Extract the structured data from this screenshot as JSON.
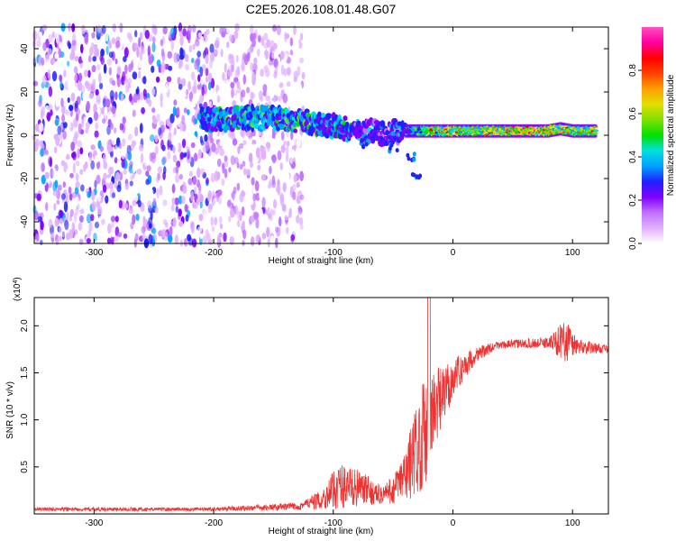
{
  "chart_data": [
    {
      "type": "heatmap",
      "title": "C2E5.2026.108.01.48.G07",
      "xlabel": "Height of straight line (km)",
      "ylabel": "Frequency (Hz)",
      "xlim": [
        -350,
        130
      ],
      "ylim": [
        -50,
        50
      ],
      "xticks": [
        -300,
        -200,
        -100,
        0,
        100
      ],
      "yticks": [
        -40,
        -20,
        0,
        20,
        40
      ],
      "colorbar": {
        "label": "Normalized spectral amplitude",
        "range": [
          0,
          1
        ],
        "ticks": [
          "0.0",
          "0.2",
          "0.4",
          "0.6",
          "0.8"
        ],
        "colors": [
          "#ffffff",
          "#e0b0ff",
          "#c070ff",
          "#8000ff",
          "#2020ff",
          "#00a0ff",
          "#00e0e0",
          "#00e000",
          "#80e000",
          "#e0e000",
          "#ffa000",
          "#ff4000",
          "#ff0000",
          "#ff00a0",
          "#ff50c0"
        ]
      },
      "noise_band": {
        "x_range": [
          -350,
          -125
        ],
        "y_range": [
          -50,
          50
        ]
      },
      "ridge": [
        {
          "x": -210,
          "freq": 7,
          "amp": 0.45
        },
        {
          "x": -180,
          "freq": 8,
          "amp": 0.55
        },
        {
          "x": -150,
          "freq": 8,
          "amp": 0.55
        },
        {
          "x": -120,
          "freq": 6,
          "amp": 0.5
        },
        {
          "x": -90,
          "freq": 3,
          "amp": 0.45
        },
        {
          "x": -60,
          "freq": 1,
          "amp": 0.4
        },
        {
          "x": -40,
          "freq": 2,
          "amp": 0.4
        },
        {
          "x": -20,
          "freq": 2,
          "amp": 0.8
        },
        {
          "x": 0,
          "freq": 2,
          "amp": 0.85
        },
        {
          "x": 20,
          "freq": 2,
          "amp": 0.85
        },
        {
          "x": 40,
          "freq": 2,
          "amp": 0.95
        },
        {
          "x": 60,
          "freq": 2,
          "amp": 0.95
        },
        {
          "x": 80,
          "freq": 2,
          "amp": 0.9
        },
        {
          "x": 90,
          "freq": 3,
          "amp": 0.9
        },
        {
          "x": 100,
          "freq": 2,
          "amp": 0.85
        },
        {
          "x": 120,
          "freq": 2,
          "amp": 0.8
        }
      ],
      "tail": [
        {
          "x": -75,
          "freq": -4
        },
        {
          "x": -50,
          "freq": -6
        },
        {
          "x": -35,
          "freq": -10
        },
        {
          "x": -30,
          "freq": -18
        }
      ]
    },
    {
      "type": "line",
      "xlabel": "Height of straight line (km)",
      "ylabel": "SNR (10 * v/v)",
      "exponent_label": "(x10",
      "exponent_power": "4",
      "exponent_close": ")",
      "xlim": [
        -350,
        130
      ],
      "ylim": [
        0,
        2.3
      ],
      "xticks": [
        -300,
        -200,
        -100,
        0,
        100
      ],
      "yticks": [
        "0.5",
        "1.0",
        "1.5",
        "2.0"
      ],
      "line_color": "#ee3333",
      "envelope": [
        {
          "x": -350,
          "base": 0.05,
          "amp": 0.02
        },
        {
          "x": -200,
          "base": 0.05,
          "amp": 0.02
        },
        {
          "x": -130,
          "base": 0.08,
          "amp": 0.04
        },
        {
          "x": -110,
          "base": 0.15,
          "amp": 0.1
        },
        {
          "x": -95,
          "base": 0.3,
          "amp": 0.25
        },
        {
          "x": -80,
          "base": 0.28,
          "amp": 0.2
        },
        {
          "x": -60,
          "base": 0.2,
          "amp": 0.1
        },
        {
          "x": -50,
          "base": 0.25,
          "amp": 0.15
        },
        {
          "x": -40,
          "base": 0.4,
          "amp": 0.3
        },
        {
          "x": -30,
          "base": 0.7,
          "amp": 0.5
        },
        {
          "x": -20,
          "base": 1.0,
          "amp": 0.65
        },
        {
          "x": -10,
          "base": 1.2,
          "amp": 0.35
        },
        {
          "x": 0,
          "base": 1.45,
          "amp": 0.2
        },
        {
          "x": 20,
          "base": 1.7,
          "amp": 0.08
        },
        {
          "x": 40,
          "base": 1.8,
          "amp": 0.04
        },
        {
          "x": 80,
          "base": 1.82,
          "amp": 0.06
        },
        {
          "x": 95,
          "base": 1.85,
          "amp": 0.25
        },
        {
          "x": 105,
          "base": 1.78,
          "amp": 0.08
        },
        {
          "x": 130,
          "base": 1.75,
          "amp": 0.04
        }
      ]
    }
  ]
}
